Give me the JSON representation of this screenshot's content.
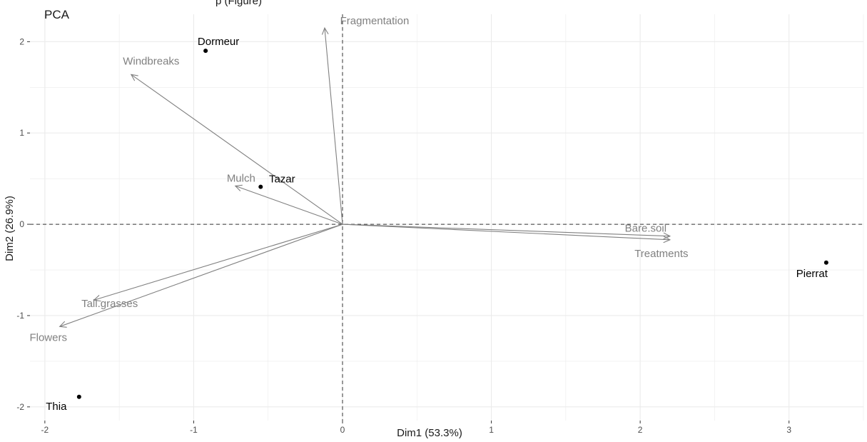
{
  "top_caption": "p                           (Figure)",
  "chart_data": {
    "type": "scatter",
    "subtype": "pca-biplot",
    "title": "PCA",
    "xlabel": "Dim1 (53.3%)",
    "ylabel": "Dim2 (26.9%)",
    "xlim": [
      -2.1,
      3.5
    ],
    "ylim": [
      -2.15,
      2.3
    ],
    "x_ticks": [
      -2,
      -1,
      0,
      1,
      2,
      3
    ],
    "y_ticks": [
      -2,
      -1,
      0,
      1,
      2
    ],
    "grid": true,
    "reference_lines": {
      "x": 0,
      "y": 0,
      "style": "dashed"
    },
    "variables": [
      {
        "name": "Fragmentation",
        "x": -0.12,
        "y": 2.15
      },
      {
        "name": "Windbreaks",
        "x": -1.42,
        "y": 1.64
      },
      {
        "name": "Mulch",
        "x": -0.72,
        "y": 0.42
      },
      {
        "name": "Bare.soil",
        "x": 2.2,
        "y": -0.13
      },
      {
        "name": "Treatments",
        "x": 2.2,
        "y": -0.17
      },
      {
        "name": "Tall.grasses",
        "x": -1.67,
        "y": -0.83
      },
      {
        "name": "Flowers",
        "x": -1.9,
        "y": -1.12
      }
    ],
    "individuals": [
      {
        "name": "Dormeur",
        "x": -0.92,
        "y": 1.9
      },
      {
        "name": "Tazar",
        "x": -0.55,
        "y": 0.41
      },
      {
        "name": "Pierrat",
        "x": 3.25,
        "y": -0.42
      },
      {
        "name": "Thia",
        "x": -1.77,
        "y": -1.89
      }
    ],
    "colors": {
      "variables": "#808080",
      "individuals": "#000000",
      "grid": "#ebebeb",
      "reference": "#333333"
    }
  }
}
